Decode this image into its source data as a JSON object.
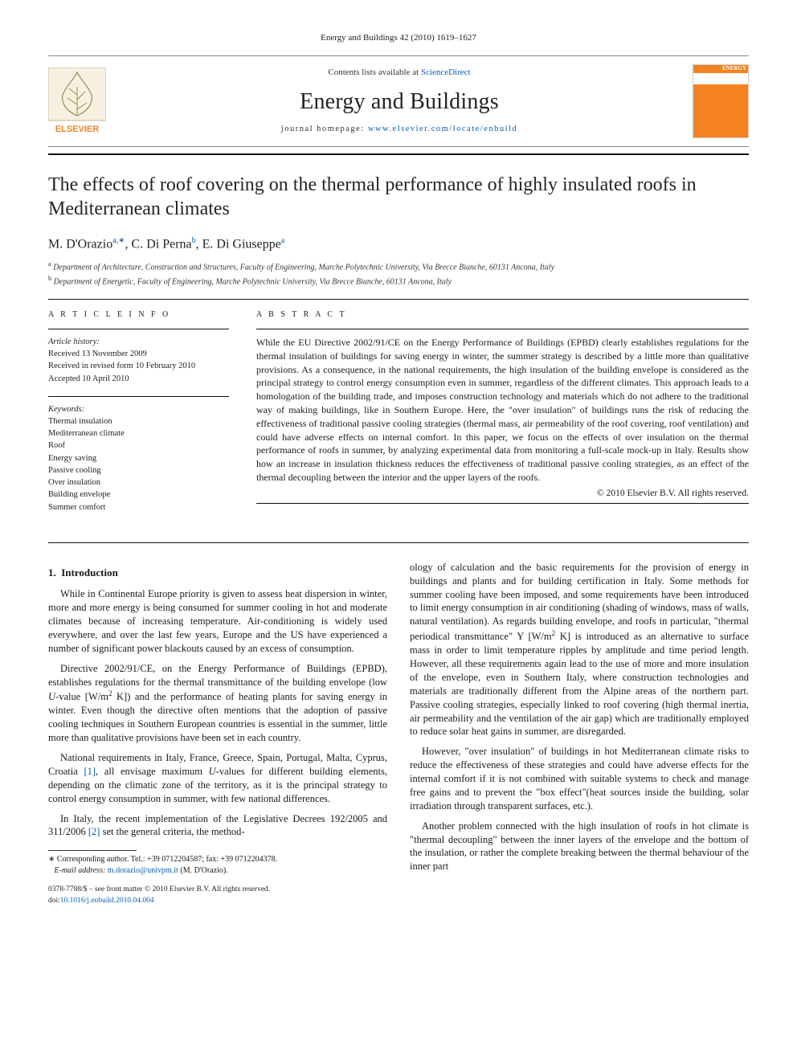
{
  "running_head": "Energy and Buildings 42 (2010) 1619–1627",
  "banner": {
    "publisher_name": "ELSEVIER",
    "contents_prefix": "Contents lists available at ",
    "contents_link": "ScienceDirect",
    "journal": "Energy and Buildings",
    "homepage_prefix": "journal homepage: ",
    "homepage_url": "www.elsevier.com/locate/enbuild",
    "cover_text": "ENERGY\nand BUILDINGS"
  },
  "title": "The effects of roof covering on the thermal performance of highly insulated roofs in Mediterranean climates",
  "authors_html": "M. D'Orazio<sup>a,</sup><sup>∗</sup>, C. Di Perna<sup>b</sup>, E. Di Giuseppe<sup>a</sup>",
  "affiliations": [
    {
      "letter": "a",
      "text": "Department of Architecture, Construction and Structures, Faculty of Engineering, Marche Polytechnic University, Via Brecce Bianche, 60131 Ancona, Italy"
    },
    {
      "letter": "b",
      "text": "Department of Energetic, Faculty of Engineering, Marche Polytechnic University, Via Brecce Bianche, 60131 Ancona, Italy"
    }
  ],
  "article_info": {
    "heading": "A R T I C L E   I N F O",
    "history_label": "Article history:",
    "history": [
      "Received 13 November 2009",
      "Received in revised form 10 February 2010",
      "Accepted 10 April 2010"
    ],
    "keywords_label": "Keywords:",
    "keywords": [
      "Thermal insulation",
      "Mediterranean climate",
      "Roof",
      "Energy saving",
      "Passive cooling",
      "Over insulation",
      "Building envelope",
      "Summer comfort"
    ]
  },
  "abstract": {
    "heading": "A B S T R A C T",
    "text": "While the EU Directive 2002/91/CE on the Energy Performance of Buildings (EPBD) clearly establishes regulations for the thermal insulation of buildings for saving energy in winter, the summer strategy is described by a little more than qualitative provisions. As a consequence, in the national requirements, the high insulation of the building envelope is considered as the principal strategy to control energy consumption even in summer, regardless of the different climates. This approach leads to a homologation of the building trade, and imposes construction technology and materials which do not adhere to the traditional way of making buildings, like in Southern Europe. Here, the \"over insulation\" of buildings runs the risk of reducing the effectiveness of traditional passive cooling strategies (thermal mass, air permeability of the roof covering, roof ventilation) and could have adverse effects on internal comfort. In this paper, we focus on the effects of over insulation on the thermal performance of roofs in summer, by analyzing experimental data from monitoring a full-scale mock-up in Italy. Results show how an increase in insulation thickness reduces the effectiveness of traditional passive cooling strategies, as an effect of the thermal decoupling between the interior and the upper layers of the roofs.",
    "copyright": "© 2010 Elsevier B.V. All rights reserved."
  },
  "body": {
    "section_number": "1.",
    "section_title": "Introduction",
    "p1": "While in Continental Europe priority is given to assess heat dispersion in winter, more and more energy is being consumed for summer cooling in hot and moderate climates because of increasing temperature. Air-conditioning is widely used everywhere, and over the last few years, Europe and the US have experienced a number of significant power blackouts caused by an excess of consumption.",
    "p2a": "Directive 2002/91/CE, on the Energy Performance of Buildings (EPBD), establishes regulations for the thermal transmittance of the building envelope (low ",
    "p2b": "-value [W/m",
    "p2c": " K]) and the performance of heating plants for saving energy in winter. Even though the directive often mentions that the adoption of passive cooling techniques in Southern European countries is essential in the summer, little more than qualitative provisions have been set in each country.",
    "p3a": "National requirements in Italy, France, Greece, Spain, Portugal, Malta, Cyprus, Croatia ",
    "ref1": "[1]",
    "p3b": ", all envisage maximum ",
    "p3c": "-values for different building elements, depending on the climatic zone of the territory, as it is the principal strategy to control energy consumption in summer, with few national differences.",
    "p4a": "In Italy, the recent implementation of the Legislative Decrees 192/2005 and 311/2006 ",
    "ref2": "[2]",
    "p4b": " set the general criteria, the method-",
    "p5a": "ology of calculation and the basic requirements for the provision of energy in buildings and plants and for building certification in Italy. Some methods for summer cooling have been imposed, and some requirements have been introduced to limit energy consumption in air conditioning (shading of windows, mass of walls, natural ventilation). As regards building envelope, and roofs in particular, \"thermal periodical transmittance\" Y [W/m",
    "p5b": " K] is introduced as an alternative to surface mass in order to limit temperature ripples by amplitude and time period length. However, all these requirements again lead to the use of more and more insulation of the envelope, even in Southern Italy, where construction technologies and materials are traditionally different from the Alpine areas of the northern part. Passive cooling strategies, especially linked to roof covering (high thermal inertia, air permeability and the ventilation of the air gap) which are traditionally employed to reduce solar heat gains in summer, are disregarded.",
    "p6": "However, \"over insulation\" of buildings in hot Mediterranean climate risks to reduce the effectiveness of these strategies and could have adverse effects for the internal comfort if it is not combined with suitable systems to check and manage free gains and to prevent the \"box effect\"(heat sources inside the building, solar irradiation through transparent surfaces, etc.).",
    "p7": "Another problem connected with the high insulation of roofs in hot climate is \"thermal decoupling\" between the inner layers of the envelope and the bottom of the insulation, or rather the complete breaking between the thermal behaviour of the inner part"
  },
  "footnote": {
    "marker": "∗",
    "line1": "Corresponding author. Tel.: +39 0712204587; fax: +39 0712204378.",
    "email_label": "E-mail address:",
    "email": "m.dorazio@univpm.it",
    "email_owner": "(M. D'Orazio)."
  },
  "footer": {
    "line1": "0378-7788/$ – see front matter © 2010 Elsevier B.V. All rights reserved.",
    "doi_label": "doi:",
    "doi": "10.1016/j.enbuild.2010.04.004"
  },
  "palette": {
    "link_color": "#0a5db0",
    "text_color": "#1a1a1a",
    "rule_color": "#111111",
    "cover_orange": "#f58220"
  }
}
